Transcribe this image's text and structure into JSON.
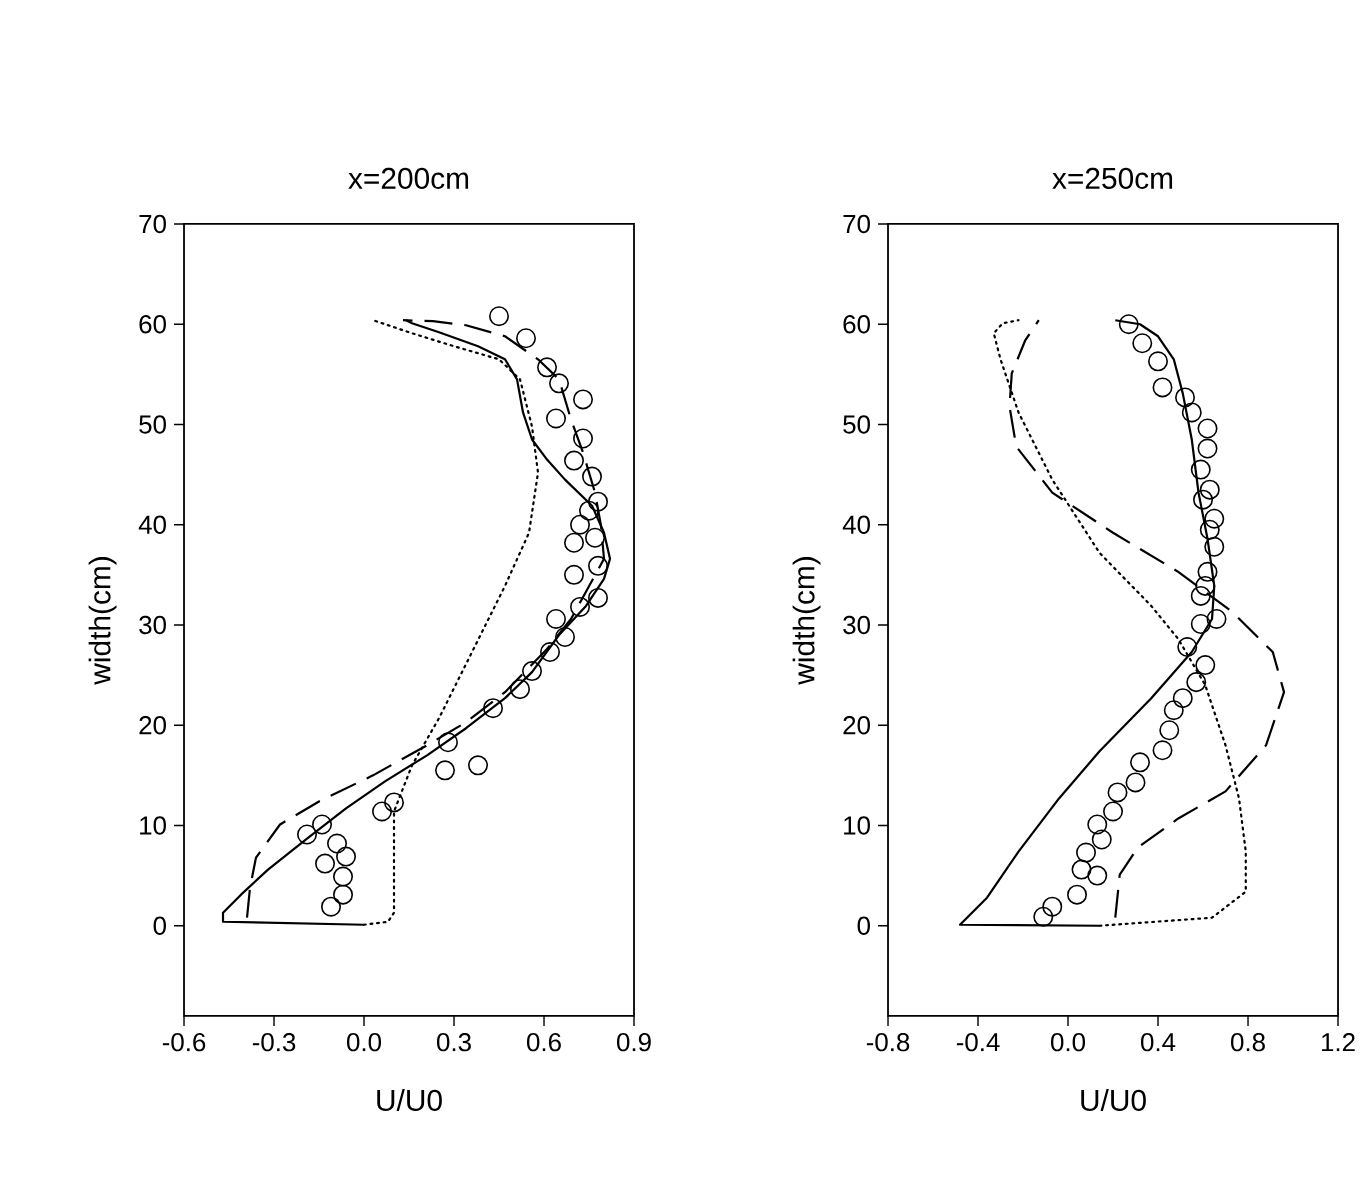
{
  "chart_data": [
    {
      "type": "line",
      "title": "x=200cm",
      "xlabel": "U/U0",
      "ylabel": "width(cm)",
      "xlim": [
        -0.6,
        0.9
      ],
      "ylim": [
        -9,
        70
      ],
      "xticks": [
        -0.6,
        -0.3,
        {
          "value": 0,
          "label": "0.0"
        },
        0.3,
        0.6,
        0.9
      ],
      "yticks": [
        0,
        10,
        20,
        30,
        40,
        50,
        60,
        70
      ],
      "series": [
        {
          "type": "scatter",
          "marker": "circle",
          "color": "#000000",
          "x": [
            0.45,
            0.54,
            0.61,
            0.65,
            0.73,
            0.64,
            0.73,
            0.7,
            0.76,
            0.78,
            0.75,
            0.72,
            0.77,
            0.7,
            0.78,
            0.7,
            0.78,
            0.72,
            0.64,
            0.67,
            0.62,
            0.56,
            0.52,
            0.43,
            0.28,
            0.27,
            0.38,
            0.1,
            0.06,
            -0.14,
            -0.19,
            -0.09,
            -0.06,
            -0.13,
            -0.07,
            -0.07,
            -0.11
          ],
          "values": [
            60.8,
            58.6,
            55.7,
            54.1,
            52.5,
            50.6,
            48.6,
            46.4,
            44.8,
            42.3,
            41.4,
            40.0,
            38.7,
            38.2,
            35.9,
            35.0,
            32.7,
            31.8,
            30.6,
            28.8,
            27.3,
            25.4,
            23.6,
            21.7,
            18.3,
            15.5,
            16.0,
            12.3,
            11.4,
            10.1,
            9.1,
            8.2,
            6.9,
            6.2,
            4.9,
            3.1,
            1.9
          ]
        },
        {
          "line_style": "solid",
          "color": "#000000",
          "x": [
            0.0,
            -0.47,
            -0.47,
            -0.41,
            -0.32,
            -0.19,
            -0.06,
            0.07,
            0.21,
            0.34,
            0.47,
            0.56,
            0.65,
            0.74,
            0.8,
            0.82,
            0.8,
            0.76,
            0.67,
            0.61,
            0.56,
            0.53,
            0.51,
            0.47,
            0.38,
            0.25,
            0.16,
            0.14
          ],
          "values": [
            0.1,
            0.4,
            1.3,
            3.1,
            5.6,
            8.7,
            11.7,
            14.4,
            17.0,
            19.7,
            22.7,
            25.3,
            29.0,
            31.9,
            34.6,
            36.6,
            39.2,
            41.9,
            44.5,
            46.5,
            48.5,
            51.2,
            54.5,
            56.5,
            57.8,
            59.2,
            60.1,
            60.4
          ]
        },
        {
          "line_style": "dashed",
          "color": "#000000",
          "x": [
            -0.39,
            -0.38,
            -0.36,
            -0.28,
            -0.15,
            0.03,
            0.21,
            0.34,
            0.47,
            0.61,
            0.69,
            0.8,
            0.79,
            0.77,
            0.73,
            0.69,
            0.65,
            0.58,
            0.47,
            0.34,
            0.23,
            0.13
          ],
          "values": [
            0.8,
            3.8,
            6.8,
            10.1,
            12.4,
            15.0,
            18.0,
            20.3,
            23.3,
            27.6,
            30.6,
            36.6,
            39.9,
            43.2,
            47.2,
            50.5,
            54.5,
            56.5,
            58.8,
            59.9,
            60.3,
            60.4
          ]
        },
        {
          "line_style": "dotted",
          "color": "#000000",
          "x": [
            0.0,
            0.08,
            0.1,
            0.1,
            0.16,
            0.25,
            0.36,
            0.47,
            0.55,
            0.58,
            0.56,
            0.52,
            0.45,
            0.3,
            0.16,
            0.03
          ],
          "values": [
            0.1,
            0.4,
            1.3,
            11.4,
            16.0,
            20.7,
            27.3,
            33.9,
            39.2,
            45.2,
            49.8,
            54.5,
            56.5,
            57.8,
            59.1,
            60.4
          ]
        }
      ]
    },
    {
      "type": "line",
      "title": "x=250cm",
      "xlabel": "U/U0",
      "ylabel": "width(cm)",
      "xlim": [
        -0.8,
        1.2
      ],
      "ylim": [
        -9,
        70
      ],
      "xticks": [
        -0.8,
        -0.4,
        {
          "value": 0,
          "label": "0.0"
        },
        0.4,
        0.8,
        1.2
      ],
      "yticks": [
        0,
        10,
        20,
        30,
        40,
        50,
        60,
        70
      ],
      "series": [
        {
          "type": "scatter",
          "marker": "circle",
          "color": "#000000",
          "x": [
            0.27,
            0.33,
            0.4,
            0.42,
            0.52,
            0.55,
            0.62,
            0.62,
            0.59,
            0.63,
            0.6,
            0.65,
            0.63,
            0.65,
            0.62,
            0.61,
            0.59,
            0.66,
            0.59,
            0.53,
            0.61,
            0.57,
            0.51,
            0.47,
            0.45,
            0.42,
            0.32,
            0.3,
            0.22,
            0.2,
            0.13,
            0.15,
            0.08,
            0.06,
            0.13,
            0.04,
            -0.07,
            -0.11
          ],
          "values": [
            60.0,
            58.1,
            56.3,
            53.7,
            52.7,
            51.2,
            49.6,
            47.6,
            45.5,
            43.5,
            42.5,
            40.6,
            39.5,
            37.8,
            35.3,
            33.9,
            32.9,
            30.6,
            30.1,
            27.8,
            26.0,
            24.3,
            22.7,
            21.5,
            19.5,
            17.5,
            16.3,
            14.3,
            13.3,
            11.4,
            10.1,
            8.6,
            7.3,
            5.6,
            5.0,
            3.1,
            1.9,
            0.9
          ]
        },
        {
          "line_style": "solid",
          "color": "#000000",
          "x": [
            0.14,
            -0.48,
            -0.36,
            -0.22,
            -0.04,
            0.14,
            0.37,
            0.55,
            0.64,
            0.65,
            0.62,
            0.58,
            0.55,
            0.51,
            0.47,
            0.4,
            0.32,
            0.21
          ],
          "values": [
            0.0,
            0.1,
            2.8,
            7.4,
            12.7,
            17.4,
            22.7,
            27.3,
            30.6,
            33.9,
            38.6,
            43.2,
            48.5,
            53.1,
            56.5,
            58.8,
            60.0,
            60.4
          ]
        },
        {
          "line_style": "dashed",
          "color": "#000000",
          "x": [
            0.21,
            0.23,
            0.31,
            0.49,
            0.7,
            0.88,
            0.96,
            0.91,
            0.73,
            0.49,
            0.2,
            -0.07,
            -0.23,
            -0.26,
            -0.25,
            -0.19,
            -0.13
          ],
          "values": [
            0.8,
            5.1,
            7.8,
            10.7,
            13.4,
            18.0,
            23.3,
            27.3,
            31.3,
            35.3,
            39.2,
            43.2,
            47.8,
            51.8,
            55.1,
            58.4,
            60.4
          ]
        },
        {
          "line_style": "dotted",
          "color": "#000000",
          "x": [
            0.14,
            0.64,
            0.79,
            0.79,
            0.76,
            0.7,
            0.61,
            0.49,
            0.37,
            0.14,
            -0.07,
            -0.22,
            -0.3,
            -0.33,
            -0.29,
            -0.22
          ],
          "values": [
            0.0,
            0.8,
            3.4,
            7.4,
            12.7,
            18.0,
            24.0,
            28.6,
            31.9,
            37.2,
            44.5,
            51.2,
            56.5,
            59.1,
            60.1,
            60.4
          ]
        }
      ]
    }
  ]
}
